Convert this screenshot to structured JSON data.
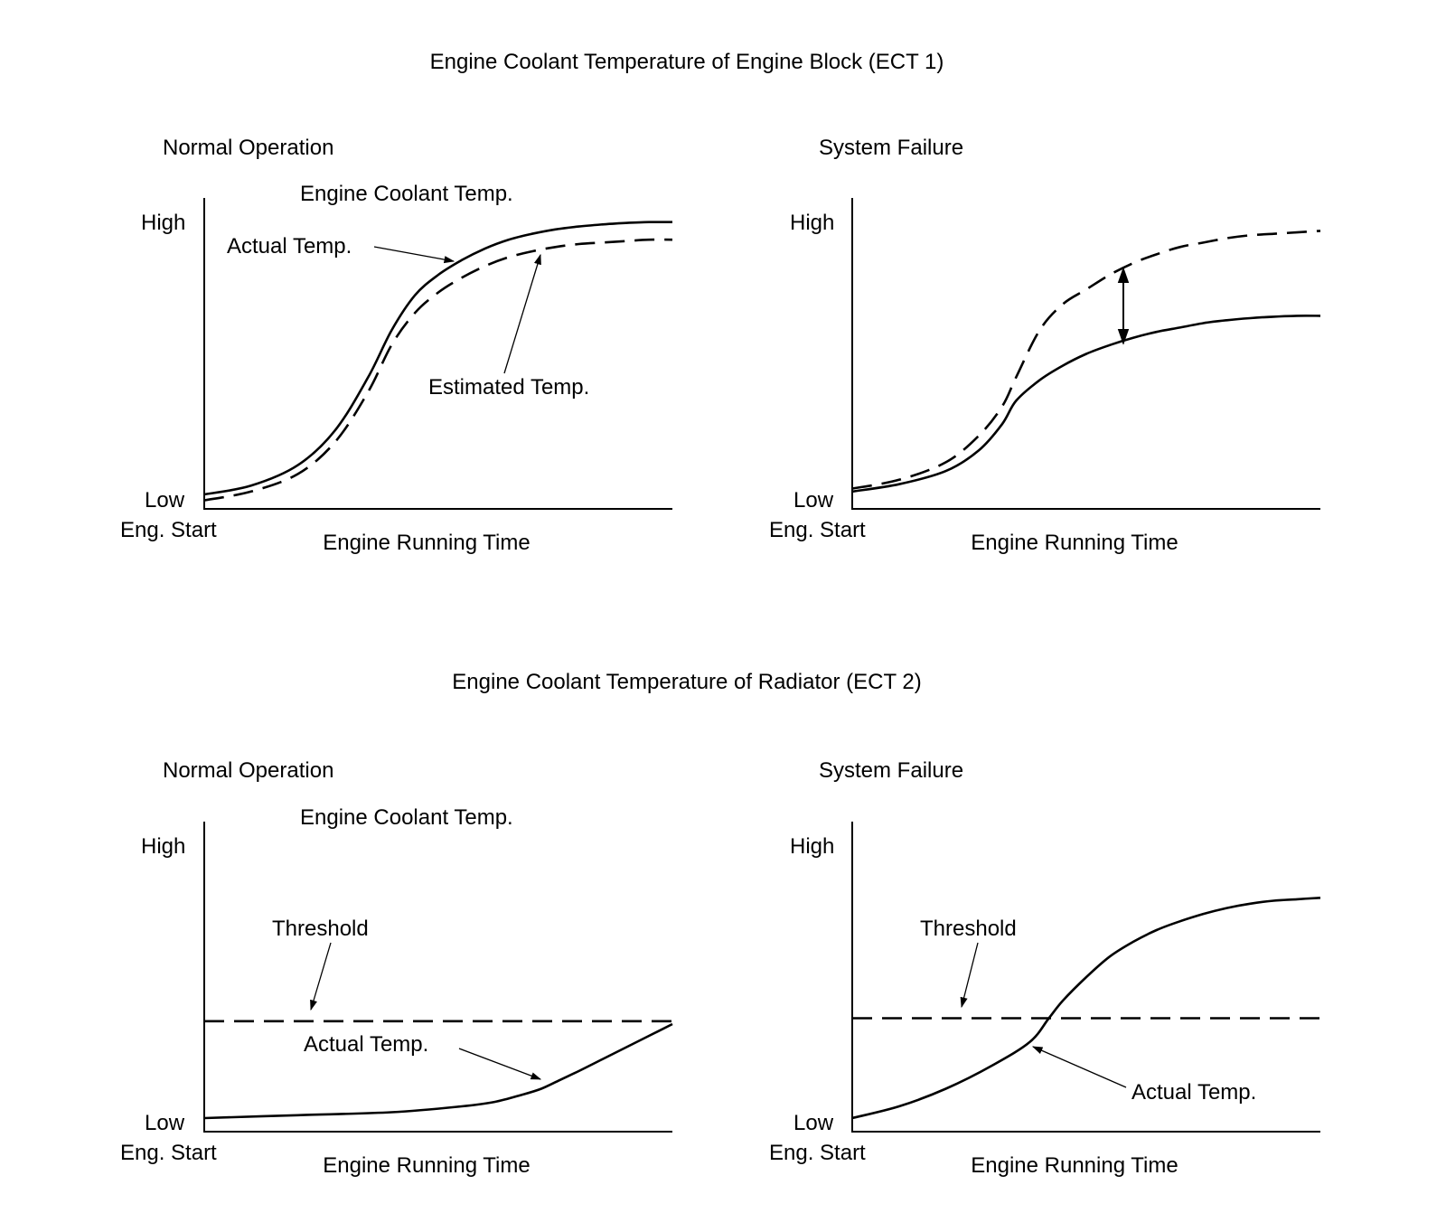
{
  "sections": [
    {
      "title": "Engine Coolant Temperature of Engine Block (ECT 1)"
    },
    {
      "title": "Engine Coolant Temperature of Radiator (ECT 2)"
    }
  ],
  "colors": {
    "line": "#000000",
    "background": "#ffffff"
  },
  "chart_data": [
    {
      "type": "line",
      "panel_title": "Normal Operation",
      "title": "Engine Coolant Temp.",
      "xlabel": "Engine Running Time",
      "x_origin_label": "Eng. Start",
      "y_high_label": "High",
      "y_low_label": "Low",
      "xlim": [
        0,
        100
      ],
      "ylim": [
        0,
        100
      ],
      "grid": false,
      "series": [
        {
          "name": "Actual Temp.",
          "style": "solid",
          "x": [
            0,
            10,
            20,
            28,
            35,
            40,
            45,
            50,
            55,
            60,
            65,
            70,
            75,
            80,
            85,
            90,
            95,
            100
          ],
          "y": [
            4,
            7,
            14,
            26,
            44,
            60,
            72,
            79,
            84,
            88,
            91,
            93,
            94.5,
            95.5,
            96.2,
            96.7,
            97,
            97
          ]
        },
        {
          "name": "Estimated Temp.",
          "style": "dashed",
          "x": [
            0,
            10,
            20,
            28,
            35,
            40,
            45,
            50,
            55,
            60,
            65,
            70,
            75,
            80,
            85,
            90,
            95,
            100
          ],
          "y": [
            2,
            5,
            11,
            22,
            39,
            55,
            66,
            73,
            78,
            82,
            85,
            87,
            88.5,
            89.5,
            90,
            90.5,
            91,
            91
          ]
        }
      ],
      "annotations": [
        {
          "text": "Actual Temp.",
          "target": "Actual Temp."
        },
        {
          "text": "Estimated Temp.",
          "target": "Estimated Temp."
        }
      ]
    },
    {
      "type": "line",
      "panel_title": "System Failure",
      "title": "",
      "xlabel": "Engine Running Time",
      "x_origin_label": "Eng. Start",
      "y_high_label": "High",
      "y_low_label": "Low",
      "xlim": [
        0,
        100
      ],
      "ylim": [
        0,
        100
      ],
      "grid": false,
      "series": [
        {
          "name": "",
          "style": "dashed",
          "x": [
            0,
            10,
            20,
            27,
            32,
            35,
            40,
            45,
            50,
            55,
            60,
            65,
            70,
            75,
            80,
            85,
            90,
            95,
            100
          ],
          "y": [
            6,
            9,
            15,
            24,
            34,
            44,
            60,
            69,
            74,
            79,
            83,
            86,
            88.5,
            90,
            91.5,
            92.5,
            93,
            93.5,
            94
          ]
        },
        {
          "name": "",
          "style": "solid",
          "x": [
            0,
            10,
            20,
            27,
            32,
            35,
            40,
            45,
            50,
            55,
            60,
            65,
            70,
            75,
            80,
            85,
            90,
            95,
            100
          ],
          "y": [
            5,
            7.5,
            12,
            19,
            28,
            36,
            43,
            48,
            52,
            55,
            57.5,
            59.5,
            61,
            62.5,
            63.5,
            64.2,
            64.7,
            65,
            65
          ]
        }
      ],
      "annotations": [
        {
          "text": "",
          "kind": "double-arrow",
          "x": 58,
          "y_from": 57,
          "y_to": 82
        }
      ]
    },
    {
      "type": "line",
      "panel_title": "Normal Operation",
      "title": "Engine Coolant Temp.",
      "xlabel": "Engine Running Time",
      "x_origin_label": "Eng. Start",
      "y_high_label": "High",
      "y_low_label": "Low",
      "xlim": [
        0,
        100
      ],
      "ylim": [
        0,
        100
      ],
      "grid": false,
      "series": [
        {
          "name": "Threshold",
          "style": "dashed",
          "x": [
            0,
            100
          ],
          "y": [
            37,
            37
          ]
        },
        {
          "name": "Actual Temp.",
          "style": "solid",
          "x": [
            0,
            20,
            40,
            55,
            62,
            68,
            72,
            76,
            80,
            85,
            90,
            95,
            100
          ],
          "y": [
            4,
            5,
            6,
            8,
            9.5,
            12,
            14,
            17,
            20,
            24,
            28,
            32,
            36
          ]
        }
      ],
      "annotations": [
        {
          "text": "Threshold",
          "target": "Threshold"
        },
        {
          "text": "Actual Temp.",
          "target": "Actual Temp."
        }
      ]
    },
    {
      "type": "line",
      "panel_title": "System Failure",
      "title": "",
      "xlabel": "Engine Running Time",
      "x_origin_label": "Eng. Start",
      "y_high_label": "High",
      "y_low_label": "Low",
      "xlim": [
        0,
        100
      ],
      "ylim": [
        0,
        100
      ],
      "grid": false,
      "series": [
        {
          "name": "Threshold",
          "style": "dashed",
          "x": [
            0,
            100
          ],
          "y": [
            38,
            38
          ]
        },
        {
          "name": "Actual Temp.",
          "style": "solid",
          "x": [
            0,
            10,
            20,
            30,
            38,
            42,
            45,
            50,
            55,
            60,
            65,
            70,
            75,
            80,
            85,
            90,
            95,
            100
          ],
          "y": [
            4,
            8,
            14,
            22,
            30,
            38,
            44,
            52,
            59,
            64,
            68,
            71,
            73.5,
            75.5,
            77,
            78,
            78.5,
            79
          ]
        }
      ],
      "annotations": [
        {
          "text": "Threshold",
          "target": "Threshold"
        },
        {
          "text": "Actual Temp.",
          "target": "Actual Temp."
        }
      ]
    }
  ]
}
